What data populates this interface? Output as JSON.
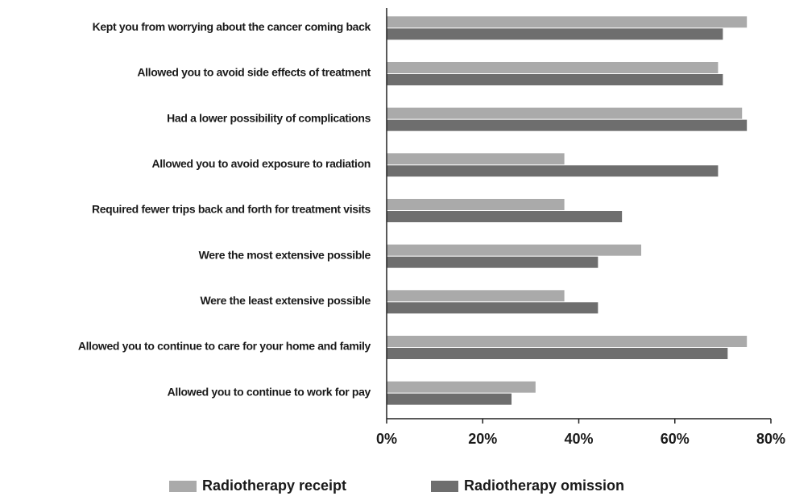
{
  "chart_data": {
    "type": "hbar",
    "categories": [
      "Kept you from worrying about the cancer coming back",
      "Allowed you to avoid side effects of treatment",
      "Had a lower possibility of complications",
      "Allowed you to avoid exposure to radiation",
      "Required fewer trips back and forth for treatment visits",
      "Were the most extensive possible",
      "Were the least extensive possible",
      "Allowed you to continue to care for your home and family",
      "Allowed you to continue to work for pay"
    ],
    "series": [
      {
        "name": "Radiotherapy receipt",
        "color": "#aaaaaa",
        "values": [
          75,
          69,
          74,
          37,
          37,
          53,
          37,
          75,
          31
        ]
      },
      {
        "name": "Radiotherapy omission",
        "color": "#6e6e6e",
        "values": [
          70,
          70,
          75,
          69,
          49,
          44,
          44,
          71,
          26
        ]
      }
    ],
    "xlim": [
      0,
      80
    ],
    "xticks": [
      {
        "value": 0,
        "label": "0%"
      },
      {
        "value": 20,
        "label": "20%"
      },
      {
        "value": 40,
        "label": "40%"
      },
      {
        "value": 60,
        "label": "60%"
      },
      {
        "value": 80,
        "label": "80%"
      }
    ],
    "legend": "bottom"
  }
}
